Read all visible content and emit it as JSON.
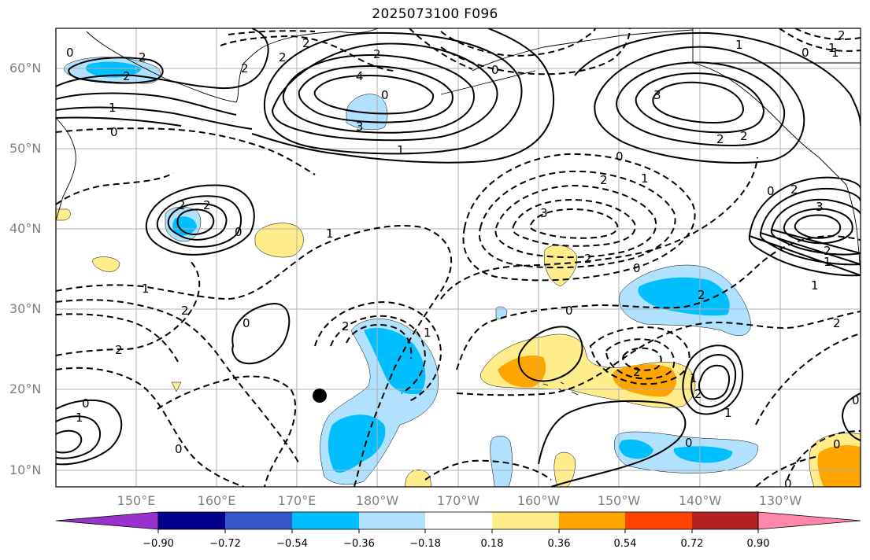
{
  "title": "2025073100 F096",
  "lat_labels": [
    "60°N",
    "50°N",
    "40°N",
    "30°N",
    "20°N",
    "10°N"
  ],
  "lon_labels": [
    "150°E",
    "160°E",
    "170°E",
    "180°W",
    "170°W",
    "160°W",
    "150°W",
    "140°W",
    "130°W"
  ],
  "colorbar": {
    "tick_labels": [
      "−0.90",
      "−0.72",
      "−0.54",
      "−0.36",
      "−0.18",
      "0.18",
      "0.36",
      "0.54",
      "0.72",
      "0.90"
    ],
    "colors": [
      "#9932cc",
      "#00008b",
      "#3657c8",
      "#00bfff",
      "#b0e2ff",
      "#ffffff",
      "#ffec8b",
      "#ffa500",
      "#ff4500",
      "#b22222",
      "#ff88aa"
    ]
  },
  "contour_labels": [
    "0",
    "2",
    "2",
    "1",
    "0",
    "2",
    "2",
    "2",
    "4",
    "3",
    "1",
    "2",
    "0",
    "2",
    "1",
    "3",
    "2",
    "2",
    "1",
    "2",
    "0",
    "0",
    "2",
    "1",
    "2",
    "0",
    "1",
    "2",
    "1",
    "2",
    "3",
    "0",
    "2",
    "0",
    "2",
    "3",
    "2",
    "1",
    "1",
    "2",
    "0",
    "1",
    "2",
    "2",
    "2",
    "1",
    "0",
    "1",
    "0",
    "0",
    "2",
    "0",
    "0",
    "0",
    "1",
    "0",
    "1",
    "0"
  ],
  "marker": {
    "label": "dot",
    "color": "#000000"
  }
}
